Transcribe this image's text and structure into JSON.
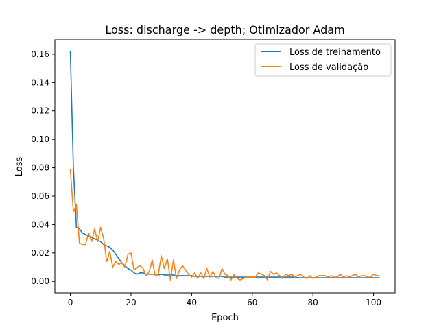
{
  "chart_data": {
    "type": "line",
    "title": "Loss: discharge -> depth; Otimizador Adam",
    "xlabel": "Epoch",
    "ylabel": "Loss",
    "xlim": [
      -5.1,
      107.1
    ],
    "ylim": [
      -0.0081,
      0.1701
    ],
    "xticks": [
      0,
      20,
      40,
      60,
      80,
      100
    ],
    "xtick_labels": [
      "0",
      "20",
      "40",
      "60",
      "80",
      "100"
    ],
    "yticks": [
      0.0,
      0.02,
      0.04,
      0.06,
      0.08,
      0.1,
      0.12,
      0.14,
      0.16
    ],
    "ytick_labels": [
      "0.00",
      "0.02",
      "0.04",
      "0.06",
      "0.08",
      "0.10",
      "0.12",
      "0.14",
      "0.16"
    ],
    "grid": false,
    "legend_position": "top-right",
    "series": [
      {
        "name": "Loss de treinamento",
        "color": "#1f77b4",
        "values": [
          0.162,
          0.08,
          0.038,
          0.037,
          0.034,
          0.033,
          0.032,
          0.031,
          0.03,
          0.029,
          0.028,
          0.026,
          0.025,
          0.024,
          0.022,
          0.019,
          0.016,
          0.013,
          0.011,
          0.009,
          0.008,
          0.006,
          0.005,
          0.006,
          0.006,
          0.005,
          0.005,
          0.005,
          0.005,
          0.0045,
          0.005,
          0.0045,
          0.0045,
          0.0045,
          0.0045,
          0.004,
          0.004,
          0.004,
          0.004,
          0.004,
          0.004,
          0.0035,
          0.0035,
          0.0035,
          0.0035,
          0.0035,
          0.0035,
          0.0035,
          0.0035,
          0.0035,
          0.0035,
          0.003,
          0.003,
          0.003,
          0.003,
          0.003,
          0.003,
          0.003,
          0.003,
          0.003,
          0.003,
          0.003,
          0.003,
          0.003,
          0.003,
          0.003,
          0.003,
          0.003,
          0.003,
          0.003,
          0.003,
          0.003,
          0.003,
          0.003,
          0.003,
          0.0025,
          0.0025,
          0.0025,
          0.0025,
          0.0025,
          0.0025,
          0.0025,
          0.0025,
          0.0025,
          0.0025,
          0.0025,
          0.0025,
          0.0025,
          0.0025,
          0.0025,
          0.0025,
          0.0025,
          0.0025,
          0.0025,
          0.0025,
          0.0025,
          0.0025,
          0.0025,
          0.0025,
          0.0025,
          0.0025,
          0.0025,
          0.0025
        ]
      },
      {
        "name": "Loss de validação",
        "color": "#ff7f0e",
        "values": [
          0.079,
          0.049,
          0.054,
          0.027,
          0.026,
          0.026,
          0.034,
          0.028,
          0.037,
          0.028,
          0.038,
          0.03,
          0.014,
          0.021,
          0.01,
          0.014,
          0.012,
          0.013,
          0.01,
          0.019,
          0.02,
          0.008,
          0.01,
          0.011,
          0.009,
          0.004,
          0.007,
          0.015,
          0.004,
          0.005,
          0.018,
          0.009,
          0.016,
          0.001,
          0.015,
          0.002,
          0.008,
          0.011,
          0.008,
          0.005,
          0.003,
          0.006,
          0.002,
          0.006,
          0.002,
          0.009,
          0.003,
          0.007,
          0.003,
          0.002,
          0.009,
          0.005,
          0.004,
          0.001,
          0.005,
          0.002,
          0.001,
          0.002,
          0.003,
          0.003,
          0.003,
          0.003,
          0.006,
          0.005,
          0.004,
          0.001,
          0.007,
          0.005,
          0.006,
          0.004,
          0.002,
          0.005,
          0.004,
          0.005,
          0.003,
          0.004,
          0.005,
          0.003,
          0.002,
          0.004,
          0.002,
          0.003,
          0.004,
          0.004,
          0.004,
          0.003,
          0.004,
          0.003,
          0.003,
          0.005,
          0.003,
          0.004,
          0.003,
          0.004,
          0.005,
          0.003,
          0.004,
          0.004,
          0.003,
          0.003,
          0.005,
          0.004,
          0.004
        ]
      }
    ]
  }
}
